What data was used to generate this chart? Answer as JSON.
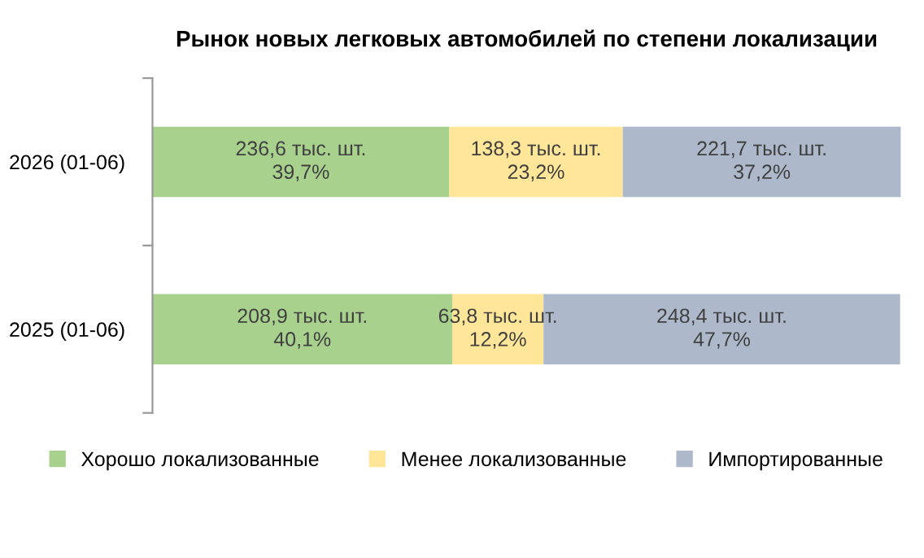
{
  "chart_data": {
    "type": "bar",
    "title": "Рынок новых легковых автомобилей по степени локализации",
    "orientation": "horizontal",
    "stacked": true,
    "legend": "bottom",
    "grid": false,
    "categories": [
      "2026 (01-06)",
      "2025 (01-06)"
    ],
    "series": [
      {
        "name": "Хорошо локализованные",
        "color": "#a9d18e",
        "values": [
          39.7,
          40.1
        ],
        "value_labels": [
          "236,6 тыс. шт.\n39,7%",
          "208,9 тыс. шт.\n40,1%"
        ]
      },
      {
        "name": "Менее локализованные",
        "color": "#ffe699",
        "values": [
          23.2,
          12.2
        ],
        "value_labels": [
          "138,3 тыс. шт.\n23,2%",
          "63,8 тыс. шт.\n12,2%"
        ]
      },
      {
        "name": "Импортированные",
        "color": "#adb9ca",
        "values": [
          37.2,
          47.7
        ],
        "value_labels": [
          "221,7 тыс. шт.\n37,2%",
          "248,4 тыс. шт.\n47,7%"
        ]
      }
    ]
  }
}
